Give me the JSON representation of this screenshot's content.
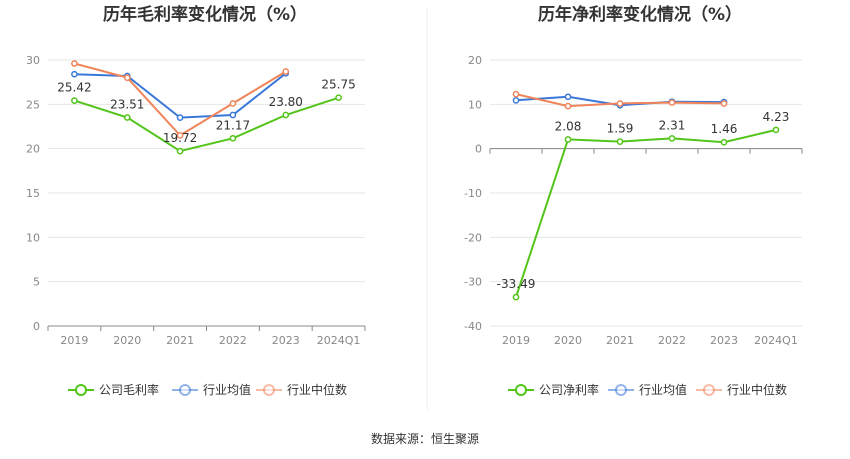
{
  "source_note": "数据来源：恒生聚源",
  "chart_data": [
    {
      "type": "line",
      "title": "历年毛利率变化情况（%）",
      "categories": [
        "2019",
        "2020",
        "2021",
        "2022",
        "2023",
        "2024Q1"
      ],
      "ylim": [
        0,
        30
      ],
      "yticks": [
        0,
        5,
        10,
        15,
        20,
        25,
        30
      ],
      "grid": true,
      "legend_position": "bottom",
      "series": [
        {
          "name": "公司毛利率",
          "color": "#52c41a",
          "values": [
            25.42,
            23.51,
            19.72,
            21.17,
            23.8,
            25.75
          ],
          "labels": [
            "25.42",
            "23.51",
            "19.72",
            "21.17",
            "23.80",
            "25.75"
          ]
        },
        {
          "name": "行业均值",
          "color": "#3a78d8",
          "values": [
            28.4,
            28.2,
            23.5,
            23.8,
            28.5,
            null
          ]
        },
        {
          "name": "行业中位数",
          "color": "#f0845a",
          "values": [
            29.6,
            28.0,
            21.5,
            25.1,
            28.7,
            null
          ]
        }
      ]
    },
    {
      "type": "line",
      "title": "历年净利率变化情况（%）",
      "categories": [
        "2019",
        "2020",
        "2021",
        "2022",
        "2023",
        "2024Q1"
      ],
      "ylim": [
        -40,
        20
      ],
      "yticks": [
        -40,
        -30,
        -20,
        -10,
        0,
        10,
        20
      ],
      "grid": true,
      "legend_position": "bottom",
      "series": [
        {
          "name": "公司净利率",
          "color": "#52c41a",
          "values": [
            -33.49,
            2.08,
            1.59,
            2.31,
            1.46,
            4.23
          ],
          "labels": [
            "-33.49",
            "2.08",
            "1.59",
            "2.31",
            "1.46",
            "4.23"
          ]
        },
        {
          "name": "行业均值",
          "color": "#3a78d8",
          "values": [
            10.9,
            11.7,
            9.8,
            10.6,
            10.5,
            null
          ]
        },
        {
          "name": "行业中位数",
          "color": "#f0845a",
          "values": [
            12.3,
            9.6,
            10.2,
            10.4,
            10.2,
            null
          ]
        }
      ]
    }
  ]
}
